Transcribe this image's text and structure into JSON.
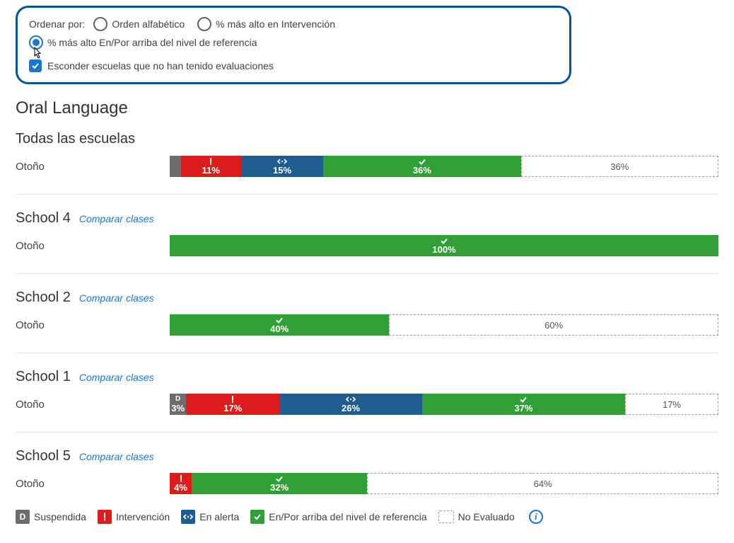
{
  "controls": {
    "sort_label": "Ordenar por:",
    "options": [
      {
        "label": "Orden alfabético",
        "selected": false
      },
      {
        "label": "% más alto en Intervención",
        "selected": false
      },
      {
        "label": "% más alto En/Por arriba del nivel de referencia",
        "selected": true
      }
    ],
    "hide_checkbox": {
      "checked": true,
      "label": "Esconder escuelas que no han tenido evaluaciones"
    }
  },
  "section_title": "Oral Language",
  "compare_label": "Comparar clases",
  "row_label": "Otoño",
  "colors": {
    "suspended": "#6d6d6d",
    "intervention": "#dd1c1c",
    "alert": "#1f5c8f",
    "benchmark": "#2fa036",
    "not_evaluated_border": "#999999",
    "accent": "#1976d2",
    "panel_border": "#025596",
    "divider": "#e3e3e3",
    "text": "#414141"
  },
  "groups": [
    {
      "name": "Todas las escuelas",
      "show_compare": false,
      "segments": [
        {
          "type": "suspended",
          "pct": 2,
          "label": ""
        },
        {
          "type": "intervention",
          "pct": 11,
          "label": "11%"
        },
        {
          "type": "alert",
          "pct": 15,
          "label": "15%"
        },
        {
          "type": "benchmark",
          "pct": 36,
          "label": "36%"
        },
        {
          "type": "not_evaluated",
          "pct": 36,
          "label": "36%"
        }
      ]
    },
    {
      "name": "School 4",
      "show_compare": true,
      "segments": [
        {
          "type": "benchmark",
          "pct": 100,
          "label": "100%"
        }
      ]
    },
    {
      "name": "School 2",
      "show_compare": true,
      "segments": [
        {
          "type": "benchmark",
          "pct": 40,
          "label": "40%"
        },
        {
          "type": "not_evaluated",
          "pct": 60,
          "label": "60%"
        }
      ]
    },
    {
      "name": "School 1",
      "show_compare": true,
      "segments": [
        {
          "type": "suspended",
          "pct": 3,
          "label": "3%",
          "badge": "D"
        },
        {
          "type": "intervention",
          "pct": 17,
          "label": "17%"
        },
        {
          "type": "alert",
          "pct": 26,
          "label": "26%"
        },
        {
          "type": "benchmark",
          "pct": 37,
          "label": "37%"
        },
        {
          "type": "not_evaluated",
          "pct": 17,
          "label": "17%"
        }
      ]
    },
    {
      "name": "School 5",
      "show_compare": true,
      "segments": [
        {
          "type": "intervention",
          "pct": 4,
          "label": "4%"
        },
        {
          "type": "benchmark",
          "pct": 32,
          "label": "32%"
        },
        {
          "type": "not_evaluated",
          "pct": 64,
          "label": "64%"
        }
      ]
    }
  ],
  "legend": {
    "suspended": "Suspendida",
    "suspended_badge": "D",
    "intervention": "Intervención",
    "alert": "En alerta",
    "benchmark": "En/Por arriba del nivel de referencia",
    "not_evaluated": "No Evaluado",
    "info": "i"
  }
}
